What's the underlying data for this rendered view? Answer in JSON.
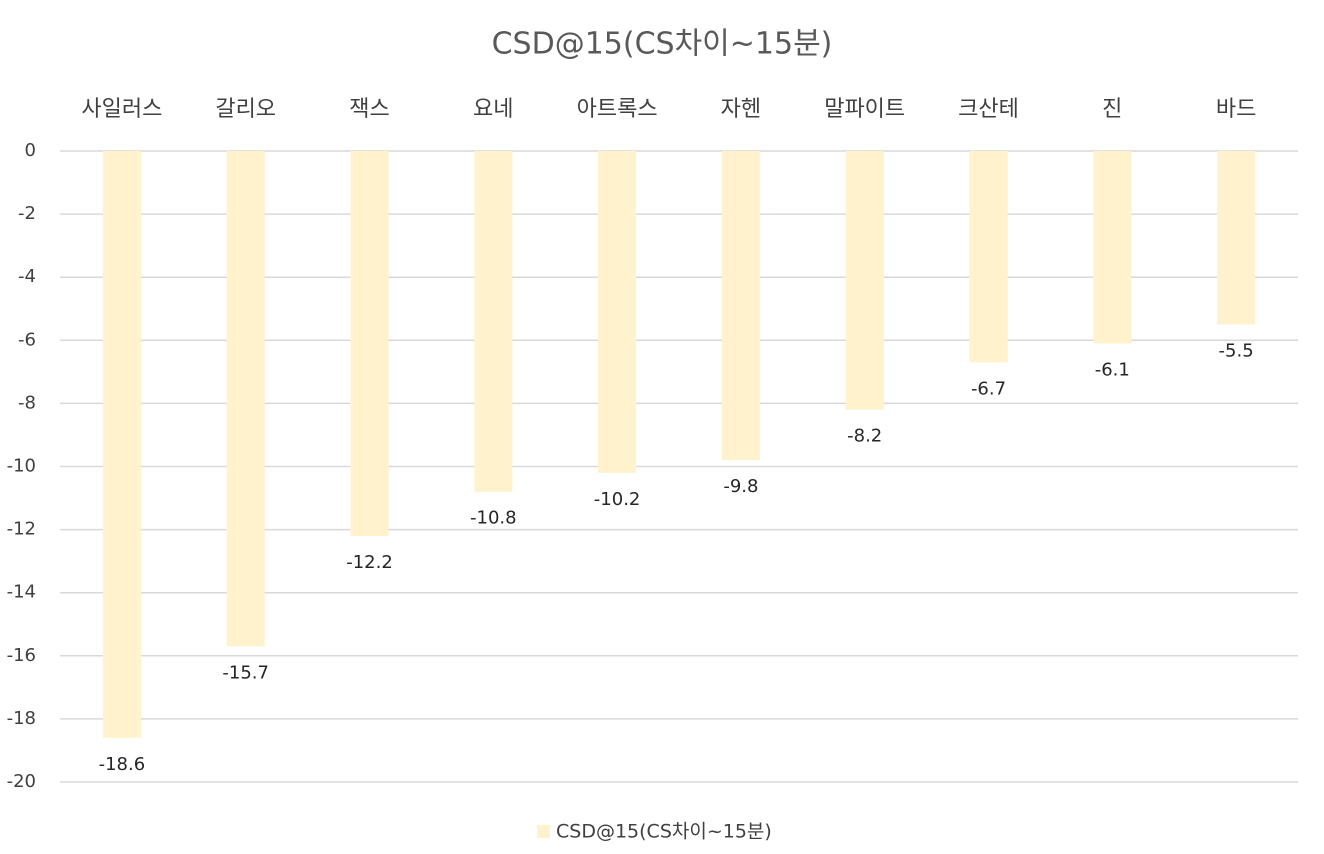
{
  "chart_data": {
    "type": "bar",
    "title": "CSD@15(CS차이~15분)",
    "categories": [
      "사일러스",
      "갈리오",
      "잭스",
      "요네",
      "아트록스",
      "자헨",
      "말파이트",
      "크산테",
      "진",
      "바드"
    ],
    "series": [
      {
        "name": "CSD@15(CS차이~15분)",
        "color": "#fff2cc",
        "values": [
          -18.6,
          -15.7,
          -12.2,
          -10.8,
          -10.2,
          -9.8,
          -8.2,
          -6.7,
          -6.1,
          -5.5
        ]
      }
    ],
    "ylim": [
      -20,
      0
    ],
    "yticks": [
      0,
      -2,
      -4,
      -6,
      -8,
      -10,
      -12,
      -14,
      -16,
      -18,
      -20
    ],
    "grid": true,
    "legend": "bottom"
  }
}
